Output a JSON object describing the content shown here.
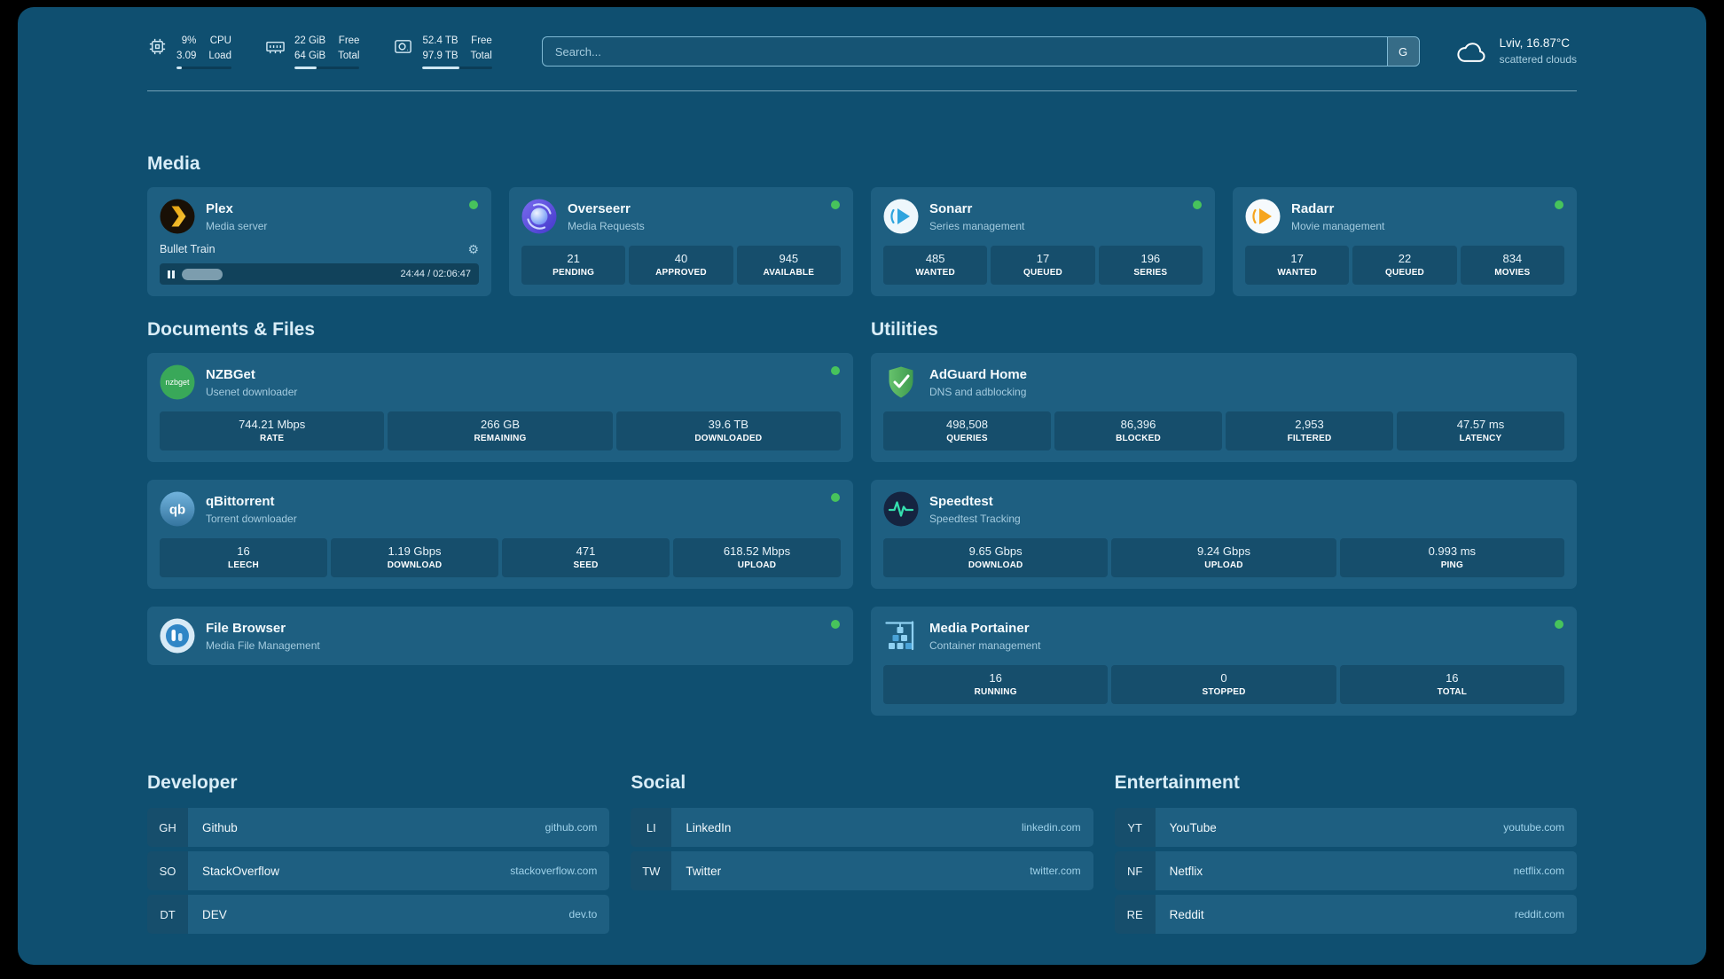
{
  "topbar": {
    "resources": [
      {
        "icon": "cpu-icon",
        "values": [
          "9%",
          "3.09"
        ],
        "labels": [
          "CPU",
          "Load"
        ],
        "percent": 9
      },
      {
        "icon": "memory-icon",
        "values": [
          "22 GiB",
          "64 GiB"
        ],
        "labels": [
          "Free",
          "Total"
        ],
        "percent": 34
      },
      {
        "icon": "disk-icon",
        "values": [
          "52.4 TB",
          "97.9 TB"
        ],
        "labels": [
          "Free",
          "Total"
        ],
        "percent": 53
      }
    ],
    "search": {
      "placeholder": "Search...",
      "provider": "G"
    },
    "weather": {
      "location": "Lviv, 16.87°C",
      "condition": "scattered clouds"
    }
  },
  "sections": {
    "media": {
      "title": "Media",
      "plex": {
        "name": "Plex",
        "desc": "Media server",
        "status": "online",
        "now_playing": "Bullet Train",
        "time": "24:44 / 02:06:47",
        "progress_percent": 19.5
      },
      "overseerr": {
        "name": "Overseerr",
        "desc": "Media Requests",
        "status": "online",
        "stats": [
          {
            "value": "21",
            "label": "PENDING"
          },
          {
            "value": "40",
            "label": "APPROVED"
          },
          {
            "value": "945",
            "label": "AVAILABLE"
          }
        ]
      },
      "sonarr": {
        "name": "Sonarr",
        "desc": "Series management",
        "status": "online",
        "stats": [
          {
            "value": "485",
            "label": "WANTED"
          },
          {
            "value": "17",
            "label": "QUEUED"
          },
          {
            "value": "196",
            "label": "SERIES"
          }
        ]
      },
      "radarr": {
        "name": "Radarr",
        "desc": "Movie management",
        "status": "online",
        "stats": [
          {
            "value": "17",
            "label": "WANTED"
          },
          {
            "value": "22",
            "label": "QUEUED"
          },
          {
            "value": "834",
            "label": "MOVIES"
          }
        ]
      }
    },
    "documents": {
      "title": "Documents & Files",
      "nzbget": {
        "name": "NZBGet",
        "desc": "Usenet downloader",
        "status": "online",
        "stats": [
          {
            "value": "744.21 Mbps",
            "label": "RATE"
          },
          {
            "value": "266 GB",
            "label": "REMAINING"
          },
          {
            "value": "39.6 TB",
            "label": "DOWNLOADED"
          }
        ]
      },
      "qbittorrent": {
        "name": "qBittorrent",
        "desc": "Torrent downloader",
        "status": "online",
        "stats": [
          {
            "value": "16",
            "label": "LEECH"
          },
          {
            "value": "1.19 Gbps",
            "label": "DOWNLOAD"
          },
          {
            "value": "471",
            "label": "SEED"
          },
          {
            "value": "618.52 Mbps",
            "label": "UPLOAD"
          }
        ]
      },
      "filebrowser": {
        "name": "File Browser",
        "desc": "Media File Management",
        "status": "online"
      }
    },
    "utilities": {
      "title": "Utilities",
      "adguard": {
        "name": "AdGuard Home",
        "desc": "DNS and adblocking",
        "stats": [
          {
            "value": "498,508",
            "label": "QUERIES"
          },
          {
            "value": "86,396",
            "label": "BLOCKED"
          },
          {
            "value": "2,953",
            "label": "FILTERED"
          },
          {
            "value": "47.57 ms",
            "label": "LATENCY"
          }
        ]
      },
      "speedtest": {
        "name": "Speedtest",
        "desc": "Speedtest Tracking",
        "stats": [
          {
            "value": "9.65 Gbps",
            "label": "DOWNLOAD"
          },
          {
            "value": "9.24 Gbps",
            "label": "UPLOAD"
          },
          {
            "value": "0.993 ms",
            "label": "PING"
          }
        ]
      },
      "portainer": {
        "name": "Media Portainer",
        "desc": "Container management",
        "status": "online",
        "stats": [
          {
            "value": "16",
            "label": "RUNNING"
          },
          {
            "value": "0",
            "label": "STOPPED"
          },
          {
            "value": "16",
            "label": "TOTAL"
          }
        ]
      }
    }
  },
  "bookmarks": [
    {
      "title": "Developer",
      "items": [
        {
          "abbr": "GH",
          "name": "Github",
          "url": "github.com"
        },
        {
          "abbr": "SO",
          "name": "StackOverflow",
          "url": "stackoverflow.com"
        },
        {
          "abbr": "DT",
          "name": "DEV",
          "url": "dev.to"
        }
      ]
    },
    {
      "title": "Social",
      "items": [
        {
          "abbr": "LI",
          "name": "LinkedIn",
          "url": "linkedin.com"
        },
        {
          "abbr": "TW",
          "name": "Twitter",
          "url": "twitter.com"
        }
      ]
    },
    {
      "title": "Entertainment",
      "items": [
        {
          "abbr": "YT",
          "name": "YouTube",
          "url": "youtube.com"
        },
        {
          "abbr": "NF",
          "name": "Netflix",
          "url": "netflix.com"
        },
        {
          "abbr": "RE",
          "name": "Reddit",
          "url": "reddit.com"
        }
      ]
    }
  ],
  "colors": {
    "background": "#0f4f70",
    "card": "#1e5f81",
    "status_green": "#47c35c",
    "heading": "#d9edf7"
  }
}
